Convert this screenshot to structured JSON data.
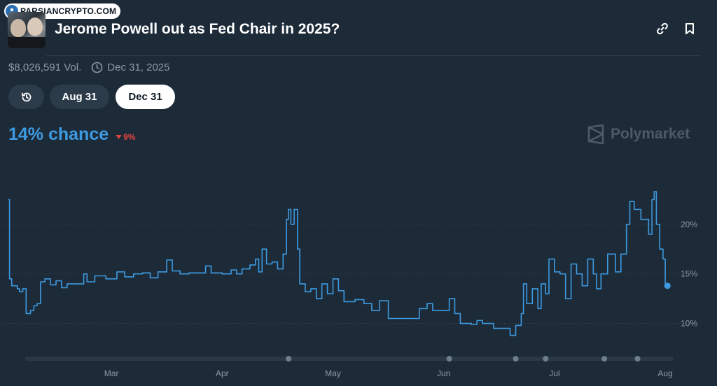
{
  "watermark": {
    "text": "PARSIANCRYPTO.COM"
  },
  "header": {
    "title": "Jerome Powell out as Fed Chair in 2025?",
    "link_icon": "link-icon",
    "bookmark_icon": "bookmark-icon"
  },
  "meta": {
    "volume": "$8,026,591 Vol.",
    "end_date": "Dec 31, 2025"
  },
  "filters": {
    "history_icon": "history-icon",
    "options": [
      "Aug 31",
      "Dec 31"
    ],
    "selected": "Dec 31"
  },
  "summary": {
    "chance": "14% chance",
    "delta": "9%",
    "delta_direction": "down",
    "brand": "Polymarket"
  },
  "colors": {
    "background": "#1d2b39",
    "line": "#3d9ae0",
    "down": "#e0443e",
    "grid": "#3a4856",
    "muted": "#8a98a8"
  },
  "chart_data": {
    "type": "line",
    "x_tick_labels": [
      "Mar",
      "Apr",
      "May",
      "Jun",
      "Jul",
      "Aug"
    ],
    "x_tick_positions": [
      1.0,
      2.0,
      3.0,
      4.0,
      5.0,
      6.0
    ],
    "xlim": [
      0.07,
      6.05
    ],
    "y_tick_labels": [
      "20%",
      "15%",
      "10%"
    ],
    "y_tick_values": [
      20,
      15,
      10
    ],
    "ylim": [
      7.5,
      24.5
    ],
    "grid": "horizontal dotted",
    "series": [
      {
        "points": [
          [
            0.07,
            22.5
          ],
          [
            0.08,
            14.5
          ],
          [
            0.1,
            13.8
          ],
          [
            0.15,
            13.5
          ],
          [
            0.17,
            13.2
          ],
          [
            0.2,
            13.5
          ],
          [
            0.23,
            11.0
          ],
          [
            0.27,
            11.3
          ],
          [
            0.3,
            11.8
          ],
          [
            0.33,
            12.0
          ],
          [
            0.36,
            14.2
          ],
          [
            0.4,
            14.5
          ],
          [
            0.45,
            13.9
          ],
          [
            0.5,
            14.3
          ],
          [
            0.55,
            13.6
          ],
          [
            0.6,
            14.0
          ],
          [
            0.7,
            14.0
          ],
          [
            0.75,
            15.0
          ],
          [
            0.78,
            14.2
          ],
          [
            0.85,
            14.8
          ],
          [
            0.95,
            14.5
          ],
          [
            1.05,
            15.2
          ],
          [
            1.12,
            14.7
          ],
          [
            1.2,
            15.0
          ],
          [
            1.28,
            15.1
          ],
          [
            1.35,
            14.6
          ],
          [
            1.42,
            15.2
          ],
          [
            1.5,
            16.4
          ],
          [
            1.55,
            15.3
          ],
          [
            1.62,
            15.0
          ],
          [
            1.7,
            15.1
          ],
          [
            1.8,
            15.1
          ],
          [
            1.85,
            15.8
          ],
          [
            1.9,
            15.1
          ],
          [
            2.0,
            15.0
          ],
          [
            2.08,
            15.4
          ],
          [
            2.13,
            15.0
          ],
          [
            2.18,
            15.5
          ],
          [
            2.25,
            15.9
          ],
          [
            2.3,
            16.5
          ],
          [
            2.33,
            15.2
          ],
          [
            2.36,
            17.5
          ],
          [
            2.4,
            16.0
          ],
          [
            2.45,
            16.2
          ],
          [
            2.5,
            15.5
          ],
          [
            2.55,
            17.0
          ],
          [
            2.58,
            20.5
          ],
          [
            2.6,
            21.5
          ],
          [
            2.62,
            20.0
          ],
          [
            2.65,
            21.5
          ],
          [
            2.68,
            17.5
          ],
          [
            2.7,
            14.0
          ],
          [
            2.75,
            13.2
          ],
          [
            2.8,
            13.5
          ],
          [
            2.85,
            12.5
          ],
          [
            2.9,
            14.0
          ],
          [
            2.95,
            13.0
          ],
          [
            3.0,
            14.5
          ],
          [
            3.05,
            13.3
          ],
          [
            3.1,
            12.2
          ],
          [
            3.2,
            12.4
          ],
          [
            3.28,
            12.0
          ],
          [
            3.35,
            11.3
          ],
          [
            3.42,
            12.3
          ],
          [
            3.5,
            10.5
          ],
          [
            3.6,
            10.5
          ],
          [
            3.7,
            10.5
          ],
          [
            3.78,
            11.5
          ],
          [
            3.85,
            12.0
          ],
          [
            3.9,
            11.3
          ],
          [
            4.0,
            11.3
          ],
          [
            4.05,
            12.5
          ],
          [
            4.1,
            11.0
          ],
          [
            4.15,
            10.0
          ],
          [
            4.25,
            9.9
          ],
          [
            4.3,
            10.3
          ],
          [
            4.35,
            10.0
          ],
          [
            4.45,
            9.5
          ],
          [
            4.55,
            9.5
          ],
          [
            4.6,
            8.8
          ],
          [
            4.65,
            9.8
          ],
          [
            4.7,
            11.0
          ],
          [
            4.72,
            14.0
          ],
          [
            4.75,
            12.0
          ],
          [
            4.8,
            13.5
          ],
          [
            4.85,
            11.5
          ],
          [
            4.88,
            14.0
          ],
          [
            4.92,
            13.0
          ],
          [
            4.95,
            16.5
          ],
          [
            5.0,
            15.2
          ],
          [
            5.05,
            15.0
          ],
          [
            5.1,
            12.5
          ],
          [
            5.15,
            16.0
          ],
          [
            5.2,
            15.0
          ],
          [
            5.25,
            13.8
          ],
          [
            5.3,
            16.5
          ],
          [
            5.35,
            15.0
          ],
          [
            5.38,
            13.5
          ],
          [
            5.42,
            15.0
          ],
          [
            5.48,
            17.0
          ],
          [
            5.55,
            15.2
          ],
          [
            5.6,
            17.0
          ],
          [
            5.65,
            20.0
          ],
          [
            5.68,
            22.3
          ],
          [
            5.72,
            21.5
          ],
          [
            5.78,
            20.5
          ],
          [
            5.85,
            19.0
          ],
          [
            5.88,
            22.5
          ],
          [
            5.9,
            23.3
          ],
          [
            5.92,
            20.0
          ],
          [
            5.95,
            17.5
          ],
          [
            5.98,
            16.5
          ],
          [
            6.0,
            14.0
          ],
          [
            6.02,
            13.8
          ]
        ]
      }
    ],
    "end_marker_value": 13.8,
    "navigator_markers": [
      2.6,
      4.05,
      4.65,
      4.92,
      5.45,
      5.75
    ]
  }
}
